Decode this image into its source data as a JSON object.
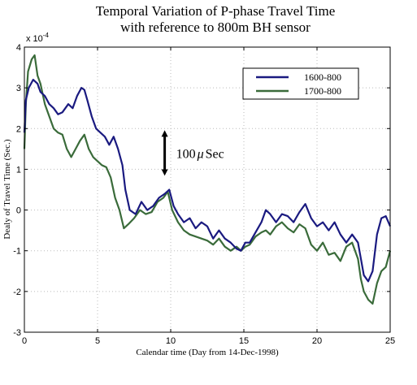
{
  "chart_data": {
    "type": "line",
    "title_line1": "Temporal Variation of P-phase Travel Time",
    "title_line2": "with reference to 800m BH sensor",
    "xlabel": "Calendar time (Day from 14-Dec-1998)",
    "ylabel": "Dealy of Travel Time (Sec.)",
    "y_multiplier": "x 10",
    "y_exponent": "-4",
    "xlim": [
      0,
      25
    ],
    "ylim": [
      -3,
      4
    ],
    "x_ticks": [
      0,
      5,
      10,
      15,
      20,
      25
    ],
    "y_ticks": [
      -3,
      -2,
      -1,
      0,
      1,
      2,
      3,
      4
    ],
    "grid": true,
    "legend_position": "top-right",
    "annotation": {
      "text_number": "100",
      "text_mu": "μ",
      "text_unit": "Sec",
      "arrow_from": 1.8,
      "arrow_to": 1.0,
      "x": 9.7
    },
    "series": [
      {
        "name": "1600-800",
        "color": "#1a1a80",
        "x": [
          0,
          0.1,
          0.3,
          0.6,
          0.9,
          1.1,
          1.4,
          1.7,
          2.0,
          2.3,
          2.6,
          3.0,
          3.3,
          3.6,
          3.9,
          4.1,
          4.3,
          4.6,
          4.9,
          5.2,
          5.5,
          5.8,
          6.1,
          6.4,
          6.7,
          6.9,
          7.2,
          7.6,
          8.0,
          8.4,
          8.8,
          9.2,
          9.6,
          9.9,
          10.2,
          10.5,
          10.9,
          11.3,
          11.7,
          12.1,
          12.5,
          12.9,
          13.3,
          13.7,
          14.1,
          14.5,
          14.8,
          15.1,
          15.4,
          15.8,
          16.2,
          16.5,
          16.8,
          17.2,
          17.6,
          18.0,
          18.4,
          18.8,
          19.2,
          19.6,
          20.0,
          20.4,
          20.8,
          21.2,
          21.6,
          22.0,
          22.4,
          22.8,
          23.0,
          23.2,
          23.5,
          23.8,
          24.1,
          24.4,
          24.7,
          25.0
        ],
        "values": [
          1.9,
          2.7,
          3.0,
          3.2,
          3.1,
          2.9,
          2.8,
          2.6,
          2.5,
          2.35,
          2.4,
          2.6,
          2.5,
          2.8,
          3.0,
          2.95,
          2.7,
          2.3,
          2.0,
          1.9,
          1.8,
          1.6,
          1.8,
          1.5,
          1.1,
          0.5,
          0.0,
          -0.1,
          0.2,
          0.0,
          0.1,
          0.3,
          0.4,
          0.5,
          0.1,
          -0.1,
          -0.3,
          -0.2,
          -0.45,
          -0.3,
          -0.4,
          -0.7,
          -0.5,
          -0.7,
          -0.8,
          -0.95,
          -1.0,
          -0.8,
          -0.8,
          -0.55,
          -0.3,
          0.0,
          -0.1,
          -0.3,
          -0.1,
          -0.15,
          -0.3,
          -0.05,
          0.15,
          -0.2,
          -0.4,
          -0.3,
          -0.5,
          -0.3,
          -0.6,
          -0.8,
          -0.6,
          -0.8,
          -1.2,
          -1.6,
          -1.75,
          -1.5,
          -0.6,
          -0.2,
          -0.15,
          -0.4
        ]
      },
      {
        "name": "1700-800",
        "color": "#3a6b3a",
        "x": [
          0,
          0.1,
          0.25,
          0.5,
          0.7,
          0.9,
          1.1,
          1.4,
          1.7,
          2.0,
          2.3,
          2.6,
          2.9,
          3.2,
          3.5,
          3.8,
          4.1,
          4.4,
          4.7,
          5.0,
          5.3,
          5.6,
          5.9,
          6.2,
          6.5,
          6.8,
          7.1,
          7.5,
          7.9,
          8.3,
          8.7,
          9.1,
          9.5,
          9.8,
          10.1,
          10.5,
          10.9,
          11.3,
          11.7,
          12.1,
          12.5,
          12.9,
          13.3,
          13.7,
          14.1,
          14.5,
          14.8,
          15.1,
          15.4,
          15.8,
          16.2,
          16.5,
          16.8,
          17.2,
          17.6,
          18.0,
          18.4,
          18.8,
          19.2,
          19.6,
          20.0,
          20.4,
          20.8,
          21.2,
          21.6,
          22.0,
          22.4,
          22.8,
          23.0,
          23.2,
          23.5,
          23.8,
          24.1,
          24.4,
          24.7,
          25.0
        ],
        "values": [
          1.5,
          2.6,
          3.4,
          3.7,
          3.8,
          3.3,
          3.1,
          2.6,
          2.3,
          2.0,
          1.9,
          1.85,
          1.5,
          1.3,
          1.5,
          1.7,
          1.85,
          1.5,
          1.3,
          1.2,
          1.1,
          1.05,
          0.8,
          0.3,
          0.0,
          -0.45,
          -0.35,
          -0.2,
          0.0,
          -0.1,
          -0.05,
          0.2,
          0.3,
          0.45,
          0.0,
          -0.3,
          -0.5,
          -0.6,
          -0.65,
          -0.7,
          -0.75,
          -0.85,
          -0.7,
          -0.9,
          -1.0,
          -0.9,
          -1.0,
          -0.9,
          -0.85,
          -0.65,
          -0.55,
          -0.5,
          -0.6,
          -0.4,
          -0.3,
          -0.45,
          -0.55,
          -0.35,
          -0.45,
          -0.85,
          -1.0,
          -0.8,
          -1.1,
          -1.05,
          -1.25,
          -0.9,
          -0.8,
          -1.2,
          -1.7,
          -2.0,
          -2.2,
          -2.3,
          -1.8,
          -1.5,
          -1.4,
          -1.0
        ]
      }
    ]
  }
}
